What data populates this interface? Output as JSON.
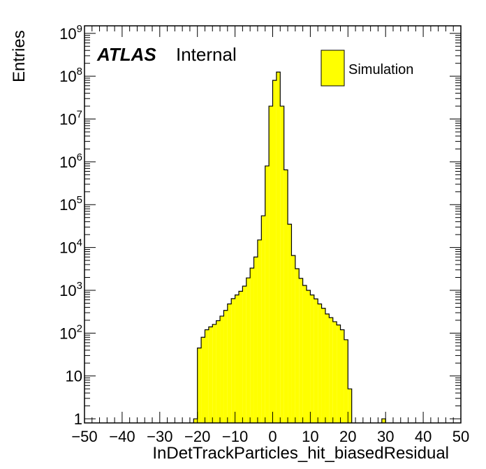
{
  "colors": {
    "fill": "#ffff00",
    "line": "#000000",
    "background": "#ffffff"
  },
  "labels": {
    "atlas": "ATLAS",
    "internal": "Internal",
    "legend": "Simulation",
    "xlabel": "InDetTrackParticles_hit_biasedResidual",
    "ylabel": "Entries"
  },
  "chart_data": {
    "type": "histogram",
    "title": "",
    "xlabel": "InDetTrackParticles_hit_biasedResidual",
    "ylabel": "Entries",
    "xlim": [
      -50,
      50
    ],
    "ylim": [
      0.8,
      1500000000.0
    ],
    "yscale": "log",
    "bin_width": 1,
    "x_ticks": [
      -50,
      -40,
      -30,
      -20,
      -10,
      0,
      10,
      20,
      30,
      40,
      50
    ],
    "x_tick_labels": [
      "−50",
      "−40",
      "−30",
      "−20",
      "−10",
      "0",
      "10",
      "20",
      "30",
      "40",
      "50"
    ],
    "y_ticks": [
      1,
      10,
      100,
      1000,
      10000,
      100000,
      1000000,
      10000000,
      100000000,
      1000000000
    ],
    "y_tick_labels": [
      {
        "base": "1",
        "exp": ""
      },
      {
        "base": "10",
        "exp": ""
      },
      {
        "base": "10",
        "exp": "2"
      },
      {
        "base": "10",
        "exp": "3"
      },
      {
        "base": "10",
        "exp": "4"
      },
      {
        "base": "10",
        "exp": "5"
      },
      {
        "base": "10",
        "exp": "6"
      },
      {
        "base": "10",
        "exp": "7"
      },
      {
        "base": "10",
        "exp": "8"
      },
      {
        "base": "10",
        "exp": "9"
      }
    ],
    "legend": {
      "entries": [
        "Simulation"
      ],
      "position": "top-right"
    },
    "grid": false,
    "bins": [
      {
        "x": -21,
        "y": 1
      },
      {
        "x": -20,
        "y": 45
      },
      {
        "x": -19,
        "y": 80
      },
      {
        "x": -18,
        "y": 120
      },
      {
        "x": -17,
        "y": 140
      },
      {
        "x": -16,
        "y": 160
      },
      {
        "x": -15,
        "y": 195
      },
      {
        "x": -14,
        "y": 250
      },
      {
        "x": -13,
        "y": 340
      },
      {
        "x": -12,
        "y": 480
      },
      {
        "x": -11,
        "y": 640
      },
      {
        "x": -10,
        "y": 780
      },
      {
        "x": -9,
        "y": 950
      },
      {
        "x": -8,
        "y": 1250
      },
      {
        "x": -7,
        "y": 1950
      },
      {
        "x": -6,
        "y": 3300
      },
      {
        "x": -5,
        "y": 6000
      },
      {
        "x": -4,
        "y": 15000
      },
      {
        "x": -3,
        "y": 55000
      },
      {
        "x": -2,
        "y": 800000
      },
      {
        "x": -1,
        "y": 20000000
      },
      {
        "x": 0,
        "y": 80000000
      },
      {
        "x": 1,
        "y": 125000000
      },
      {
        "x": 2,
        "y": 20000000
      },
      {
        "x": 3,
        "y": 650000
      },
      {
        "x": 4,
        "y": 35000
      },
      {
        "x": 5,
        "y": 6500
      },
      {
        "x": 6,
        "y": 3200
      },
      {
        "x": 7,
        "y": 1900
      },
      {
        "x": 8,
        "y": 1300
      },
      {
        "x": 9,
        "y": 1000
      },
      {
        "x": 10,
        "y": 780
      },
      {
        "x": 11,
        "y": 630
      },
      {
        "x": 12,
        "y": 480
      },
      {
        "x": 13,
        "y": 380
      },
      {
        "x": 14,
        "y": 280
      },
      {
        "x": 15,
        "y": 230
      },
      {
        "x": 16,
        "y": 185
      },
      {
        "x": 17,
        "y": 155
      },
      {
        "x": 18,
        "y": 120
      },
      {
        "x": 19,
        "y": 70
      },
      {
        "x": 20,
        "y": 5
      },
      {
        "x": 29,
        "y": 1
      }
    ]
  }
}
